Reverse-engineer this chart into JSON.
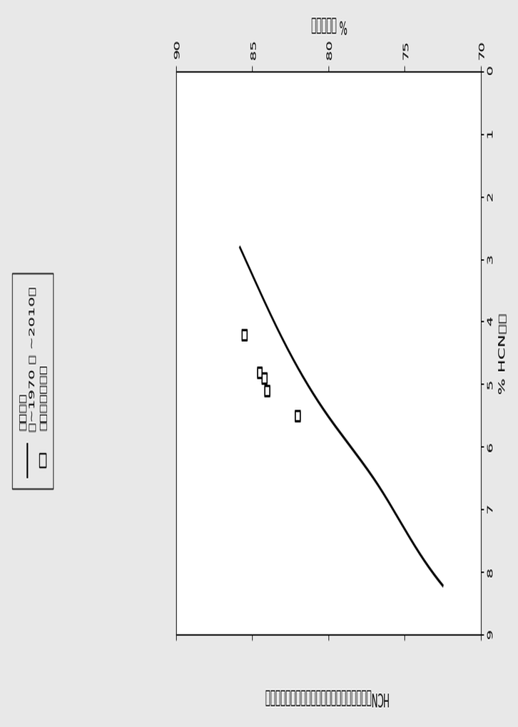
{
  "title": "HCN收率对丙烯腈收率的丙烯腈催化剂发展历史趋势",
  "xlabel": "% HCN收率",
  "ylabel": "% 丙烯腈收率",
  "xlim": [
    9,
    0
  ],
  "ylim": [
    70,
    90
  ],
  "xticks": [
    9,
    8,
    7,
    6,
    5,
    4,
    3,
    2,
    1,
    0
  ],
  "yticks": [
    70,
    75,
    80,
    85,
    90
  ],
  "curve_x": [
    8.2,
    7.5,
    6.5,
    5.5,
    4.5,
    3.5,
    2.8
  ],
  "curve_y": [
    72.5,
    74.5,
    77.0,
    80.0,
    82.5,
    84.5,
    85.8
  ],
  "scatter_x": [
    5.5,
    5.1,
    4.9,
    4.8,
    4.2
  ],
  "scatter_y": [
    82.0,
    84.0,
    84.2,
    84.5,
    85.5
  ],
  "legend_line_label": "历史趋势",
  "legend_line_sub": "（~1970 至 ~2010）",
  "legend_scatter_label": "本发明的催化剂",
  "background_color": "#e8e8e8",
  "plot_bg_color": "#ffffff",
  "line_color": "#000000",
  "scatter_color": "#000000",
  "title_fontsize": 11,
  "axis_fontsize": 11,
  "tick_fontsize": 10,
  "legend_fontsize": 10
}
